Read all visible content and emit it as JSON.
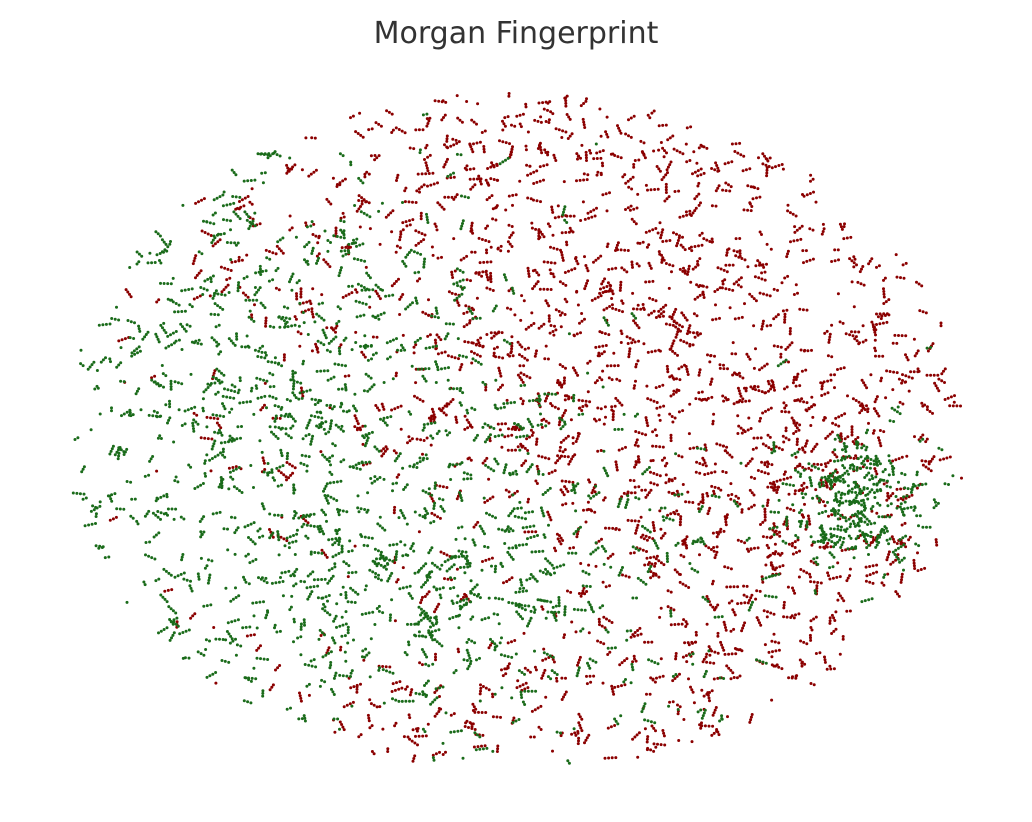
{
  "chart_data": {
    "type": "scatter",
    "title": "Morgan Fingerprint",
    "xlabel": "",
    "ylabel": "",
    "grid": false,
    "axes_visible": false,
    "legend": "none",
    "point_count": 7000,
    "xlim": [
      -1,
      1
    ],
    "ylim": [
      -1,
      1
    ],
    "series": [
      {
        "color": "#8b0000",
        "share": 0.55,
        "regions": [
          {
            "cx": 0.25,
            "cy": 0.25,
            "sx": 0.45,
            "sy": 0.45,
            "weight": 0.55
          },
          {
            "cx": 0.0,
            "cy": 0.8,
            "sx": 0.55,
            "sy": 0.18,
            "weight": 0.15
          },
          {
            "cx": 0.65,
            "cy": -0.3,
            "sx": 0.25,
            "sy": 0.35,
            "weight": 0.2
          },
          {
            "cx": -0.1,
            "cy": -0.85,
            "sx": 0.5,
            "sy": 0.15,
            "weight": 0.1
          }
        ]
      },
      {
        "color": "#1a6b1a",
        "share": 0.45,
        "regions": [
          {
            "cx": -0.55,
            "cy": 0.15,
            "sx": 0.3,
            "sy": 0.45,
            "weight": 0.45
          },
          {
            "cx": -0.15,
            "cy": -0.45,
            "sx": 0.4,
            "sy": 0.3,
            "weight": 0.4
          },
          {
            "cx": 0.75,
            "cy": -0.2,
            "sx": 0.08,
            "sy": 0.1,
            "weight": 0.15
          }
        ]
      }
    ]
  }
}
